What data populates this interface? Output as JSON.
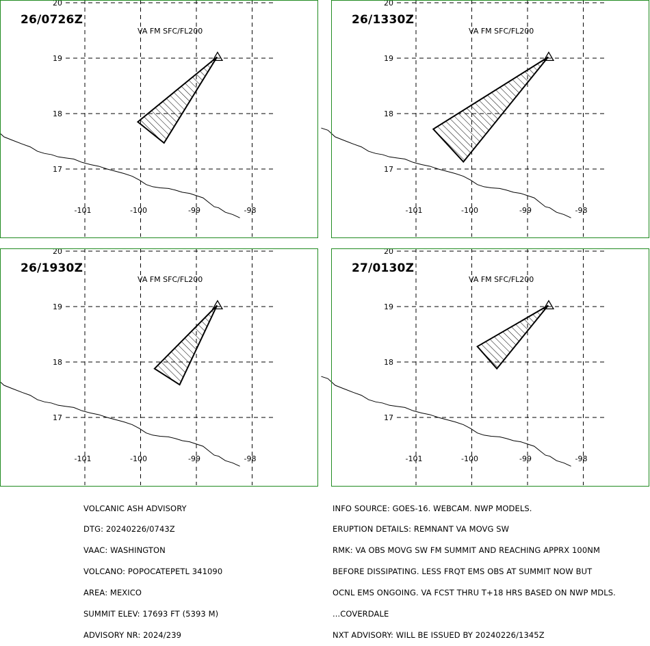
{
  "panels": [
    {
      "time": "26/0726Z",
      "level": "VA FM SFC/FL200",
      "polygon": [
        [
          -98.63,
          19.02
        ],
        [
          -100.05,
          17.85
        ],
        [
          -99.58,
          17.47
        ]
      ]
    },
    {
      "time": "26/1330Z",
      "level": "VA FM SFC/FL200",
      "polygon": [
        [
          -98.63,
          19.02
        ],
        [
          -100.69,
          17.72
        ],
        [
          -100.15,
          17.13
        ]
      ]
    },
    {
      "time": "26/1930Z",
      "level": "VA FM SFC/FL200",
      "polygon": [
        [
          -98.63,
          19.02
        ],
        [
          -99.75,
          17.88
        ],
        [
          -99.3,
          17.59
        ]
      ]
    },
    {
      "time": "27/0130Z",
      "level": "VA FM SFC/FL200",
      "polygon": [
        [
          -98.63,
          19.02
        ],
        [
          -99.9,
          18.28
        ],
        [
          -99.55,
          17.88
        ]
      ]
    }
  ],
  "axis": {
    "lon_ticks": [
      "-101",
      "-100",
      "-99",
      "-98"
    ],
    "lat_ticks": [
      "20",
      "19",
      "18",
      "17"
    ]
  },
  "volcano_marker": {
    "lon": -98.62,
    "lat": 19.02,
    "symbol": "triangle"
  },
  "coastline_lonlat": [
    [
      -102.7,
      17.74
    ],
    [
      -102.58,
      17.7
    ],
    [
      -102.45,
      17.58
    ],
    [
      -102.3,
      17.52
    ],
    [
      -102.12,
      17.45
    ],
    [
      -101.98,
      17.4
    ],
    [
      -101.85,
      17.32
    ],
    [
      -101.72,
      17.28
    ],
    [
      -101.6,
      17.26
    ],
    [
      -101.48,
      17.22
    ],
    [
      -101.35,
      17.2
    ],
    [
      -101.2,
      17.18
    ],
    [
      -101.05,
      17.12
    ],
    [
      -100.9,
      17.08
    ],
    [
      -100.75,
      17.05
    ],
    [
      -100.6,
      17.0
    ],
    [
      -100.45,
      16.96
    ],
    [
      -100.3,
      16.92
    ],
    [
      -100.15,
      16.87
    ],
    [
      -100.02,
      16.8
    ],
    [
      -99.9,
      16.72
    ],
    [
      -99.78,
      16.68
    ],
    [
      -99.65,
      16.66
    ],
    [
      -99.5,
      16.65
    ],
    [
      -99.38,
      16.62
    ],
    [
      -99.25,
      16.58
    ],
    [
      -99.12,
      16.56
    ],
    [
      -99.0,
      16.52
    ],
    [
      -98.88,
      16.48
    ],
    [
      -98.78,
      16.4
    ],
    [
      -98.68,
      16.32
    ],
    [
      -98.6,
      16.3
    ],
    [
      -98.48,
      16.22
    ],
    [
      -98.35,
      16.18
    ],
    [
      -98.22,
      16.12
    ]
  ],
  "advisory_left": [
    "VOLCANIC ASH ADVISORY",
    "DTG: 20240226/0743Z",
    "VAAC: WASHINGTON",
    "VOLCANO: POPOCATEPETL 341090",
    "AREA: MEXICO",
    "SUMMIT ELEV: 17693 FT (5393 M)",
    "ADVISORY NR: 2024/239"
  ],
  "advisory_right": [
    "INFO SOURCE: GOES-16. WEBCAM. NWP MODELS.",
    "ERUPTION DETAILS: REMNANT VA MOVG SW",
    "RMK: VA OBS MOVG SW FM SUMMIT AND REACHING APPRX 100NM",
    "BEFORE DISSIPATING. LESS FRQT EMS OBS AT SUMMIT NOW BUT",
    "OCNL EMS ONGOING. VA FCST THRU T+18 HRS BASED ON NWP MDLS.",
    "...COVERDALE",
    "NXT ADVISORY: WILL BE ISSUED BY 20240226/1345Z"
  ],
  "colors": {
    "frame": "#1f8a1f",
    "lines": "#000000",
    "background": "#ffffff"
  }
}
